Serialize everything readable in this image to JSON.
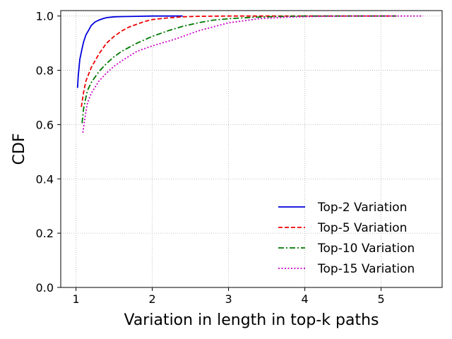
{
  "chart_data": {
    "type": "line",
    "title": "",
    "xlabel": "Variation in length in top-k paths",
    "ylabel": "CDF",
    "xlim": [
      0.8,
      5.8
    ],
    "ylim": [
      0.0,
      1.02
    ],
    "x_ticks": [
      1,
      2,
      3,
      4,
      5
    ],
    "y_ticks": [
      0.0,
      0.2,
      0.4,
      0.6,
      0.8,
      1.0
    ],
    "x_tick_labels": [
      "1",
      "2",
      "3",
      "4",
      "5"
    ],
    "y_tick_labels": [
      "0.0",
      "0.2",
      "0.4",
      "0.6",
      "0.8",
      "1.0"
    ],
    "grid": true,
    "legend_position": "lower-right",
    "series": [
      {
        "name": "Top-2 Variation",
        "color": "#0000dd",
        "style": "solid",
        "x": [
          1.02,
          1.03,
          1.05,
          1.08,
          1.1,
          1.13,
          1.17,
          1.2,
          1.25,
          1.3,
          1.35,
          1.4,
          1.5,
          1.6,
          1.8,
          2.0,
          2.4
        ],
        "y": [
          0.735,
          0.78,
          0.84,
          0.88,
          0.905,
          0.93,
          0.95,
          0.965,
          0.978,
          0.985,
          0.99,
          0.994,
          0.997,
          0.998,
          0.999,
          1.0,
          1.0
        ]
      },
      {
        "name": "Top-5 Variation",
        "color": "#ee0000",
        "style": "dashed",
        "x": [
          1.07,
          1.1,
          1.13,
          1.15,
          1.2,
          1.25,
          1.3,
          1.4,
          1.5,
          1.6,
          1.7,
          1.8,
          1.9,
          2.0,
          2.2,
          2.4,
          2.6,
          3.0,
          3.5,
          4.0,
          5.2
        ],
        "y": [
          0.665,
          0.72,
          0.76,
          0.775,
          0.81,
          0.835,
          0.86,
          0.9,
          0.925,
          0.945,
          0.96,
          0.97,
          0.98,
          0.987,
          0.993,
          0.997,
          0.999,
          1.0,
          1.0,
          1.0,
          1.0
        ]
      },
      {
        "name": "Top-10 Variation",
        "color": "#007700",
        "style": "dashdot",
        "x": [
          1.08,
          1.1,
          1.13,
          1.15,
          1.2,
          1.3,
          1.4,
          1.5,
          1.6,
          1.8,
          2.0,
          2.2,
          2.4,
          2.6,
          2.8,
          3.0,
          3.3,
          3.6,
          4.0,
          4.5,
          5.2
        ],
        "y": [
          0.605,
          0.66,
          0.7,
          0.725,
          0.755,
          0.795,
          0.825,
          0.85,
          0.87,
          0.9,
          0.925,
          0.945,
          0.962,
          0.975,
          0.985,
          0.99,
          0.995,
          0.998,
          1.0,
          1.0,
          1.0
        ]
      },
      {
        "name": "Top-15 Variation",
        "color": "#cc00cc",
        "style": "dotted",
        "x": [
          1.09,
          1.12,
          1.15,
          1.2,
          1.3,
          1.4,
          1.5,
          1.6,
          1.8,
          2.0,
          2.3,
          2.6,
          3.0,
          3.4,
          3.8,
          4.2,
          4.6,
          5.0,
          5.55
        ],
        "y": [
          0.57,
          0.63,
          0.68,
          0.715,
          0.76,
          0.79,
          0.815,
          0.835,
          0.87,
          0.89,
          0.915,
          0.945,
          0.975,
          0.99,
          0.996,
          0.999,
          1.0,
          1.0,
          1.0
        ]
      }
    ]
  }
}
